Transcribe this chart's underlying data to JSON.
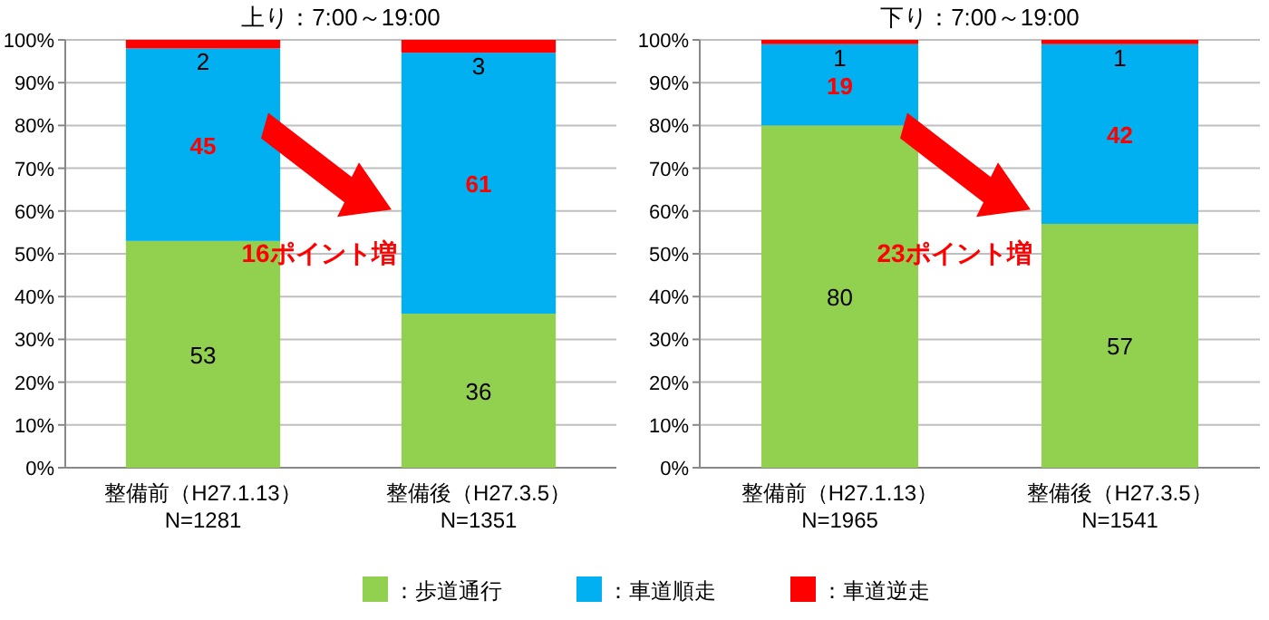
{
  "chart_data": [
    {
      "type": "bar",
      "stacked": true,
      "title": "上り：7:00～19:00",
      "categories": [
        "整備前（H27.1.13）\nN=1281",
        "整備後（H27.3.5）\nN=1351"
      ],
      "series": [
        {
          "name": "：歩道通行",
          "color": "#92d050",
          "values": [
            53,
            36
          ]
        },
        {
          "name": "：車道順走",
          "color": "#00b0f0",
          "values": [
            45,
            61
          ]
        },
        {
          "name": "：車道逆走",
          "color": "#ff0000",
          "values": [
            2,
            3
          ]
        }
      ],
      "ylim": [
        0,
        100
      ],
      "yticks": [
        {
          "value": 0,
          "label": "0%"
        },
        {
          "value": 10,
          "label": "10%"
        },
        {
          "value": 20,
          "label": "20%"
        },
        {
          "value": 30,
          "label": "30%"
        },
        {
          "value": 40,
          "label": "40%"
        },
        {
          "value": 50,
          "label": "50%"
        },
        {
          "value": 60,
          "label": "60%"
        },
        {
          "value": 70,
          "label": "70%"
        },
        {
          "value": 80,
          "label": "80%"
        },
        {
          "value": 90,
          "label": "90%"
        },
        {
          "value": 100,
          "label": "100%"
        }
      ],
      "grid": "y",
      "data_labels": true,
      "legend": "bottom",
      "annotations": [
        "16ポイント増"
      ]
    },
    {
      "type": "bar",
      "stacked": true,
      "title": "下り：7:00～19:00",
      "categories": [
        "整備前（H27.1.13）\nN=1965",
        "整備後（H27.3.5）\nN=1541"
      ],
      "series": [
        {
          "color": "#92d050",
          "values": [
            80,
            57
          ]
        },
        {
          "color": "#00b0f0",
          "values": [
            19,
            42
          ]
        },
        {
          "color": "#ff0000",
          "values": [
            1,
            1
          ]
        }
      ],
      "ylim": [
        0,
        100
      ],
      "yticks": [
        {
          "value": 0,
          "label": "0%"
        },
        {
          "value": 10,
          "label": "10%"
        },
        {
          "value": 20,
          "label": "20%"
        },
        {
          "value": 30,
          "label": "30%"
        },
        {
          "value": 40,
          "label": "40%"
        },
        {
          "value": 50,
          "label": "50%"
        },
        {
          "value": 60,
          "label": "60%"
        },
        {
          "value": 70,
          "label": "70%"
        },
        {
          "value": 80,
          "label": "80%"
        },
        {
          "value": 90,
          "label": "90%"
        },
        {
          "value": 100,
          "label": "100%"
        }
      ],
      "grid": "y",
      "data_labels": true,
      "annotations": [
        "23ポイント増"
      ]
    }
  ]
}
